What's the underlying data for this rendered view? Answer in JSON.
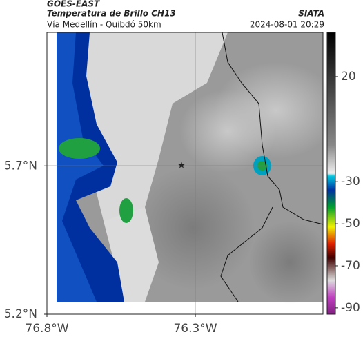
{
  "header": {
    "source": "GOES-EAST",
    "title": "Temperatura de Brillo CH13",
    "organization": "SIATA",
    "subtitle": "Vía Medellín - Quibdó 50km",
    "timestamp": "2024-08-01 20:29"
  },
  "map": {
    "xlim": [
      -76.8,
      -75.87
    ],
    "ylim": [
      5.2,
      6.15
    ],
    "xticks": [
      {
        "value": -76.8,
        "label": "76.8°W"
      },
      {
        "value": -76.3,
        "label": "76.3°W"
      }
    ],
    "yticks": [
      {
        "value": 5.7,
        "label": "5.7°N"
      },
      {
        "value": 5.2,
        "label": "5.2°N"
      }
    ]
  },
  "colorbar": {
    "lim": [
      -93,
      41
    ],
    "ticks": [
      20,
      -30,
      -50,
      -70,
      -90
    ]
  }
}
